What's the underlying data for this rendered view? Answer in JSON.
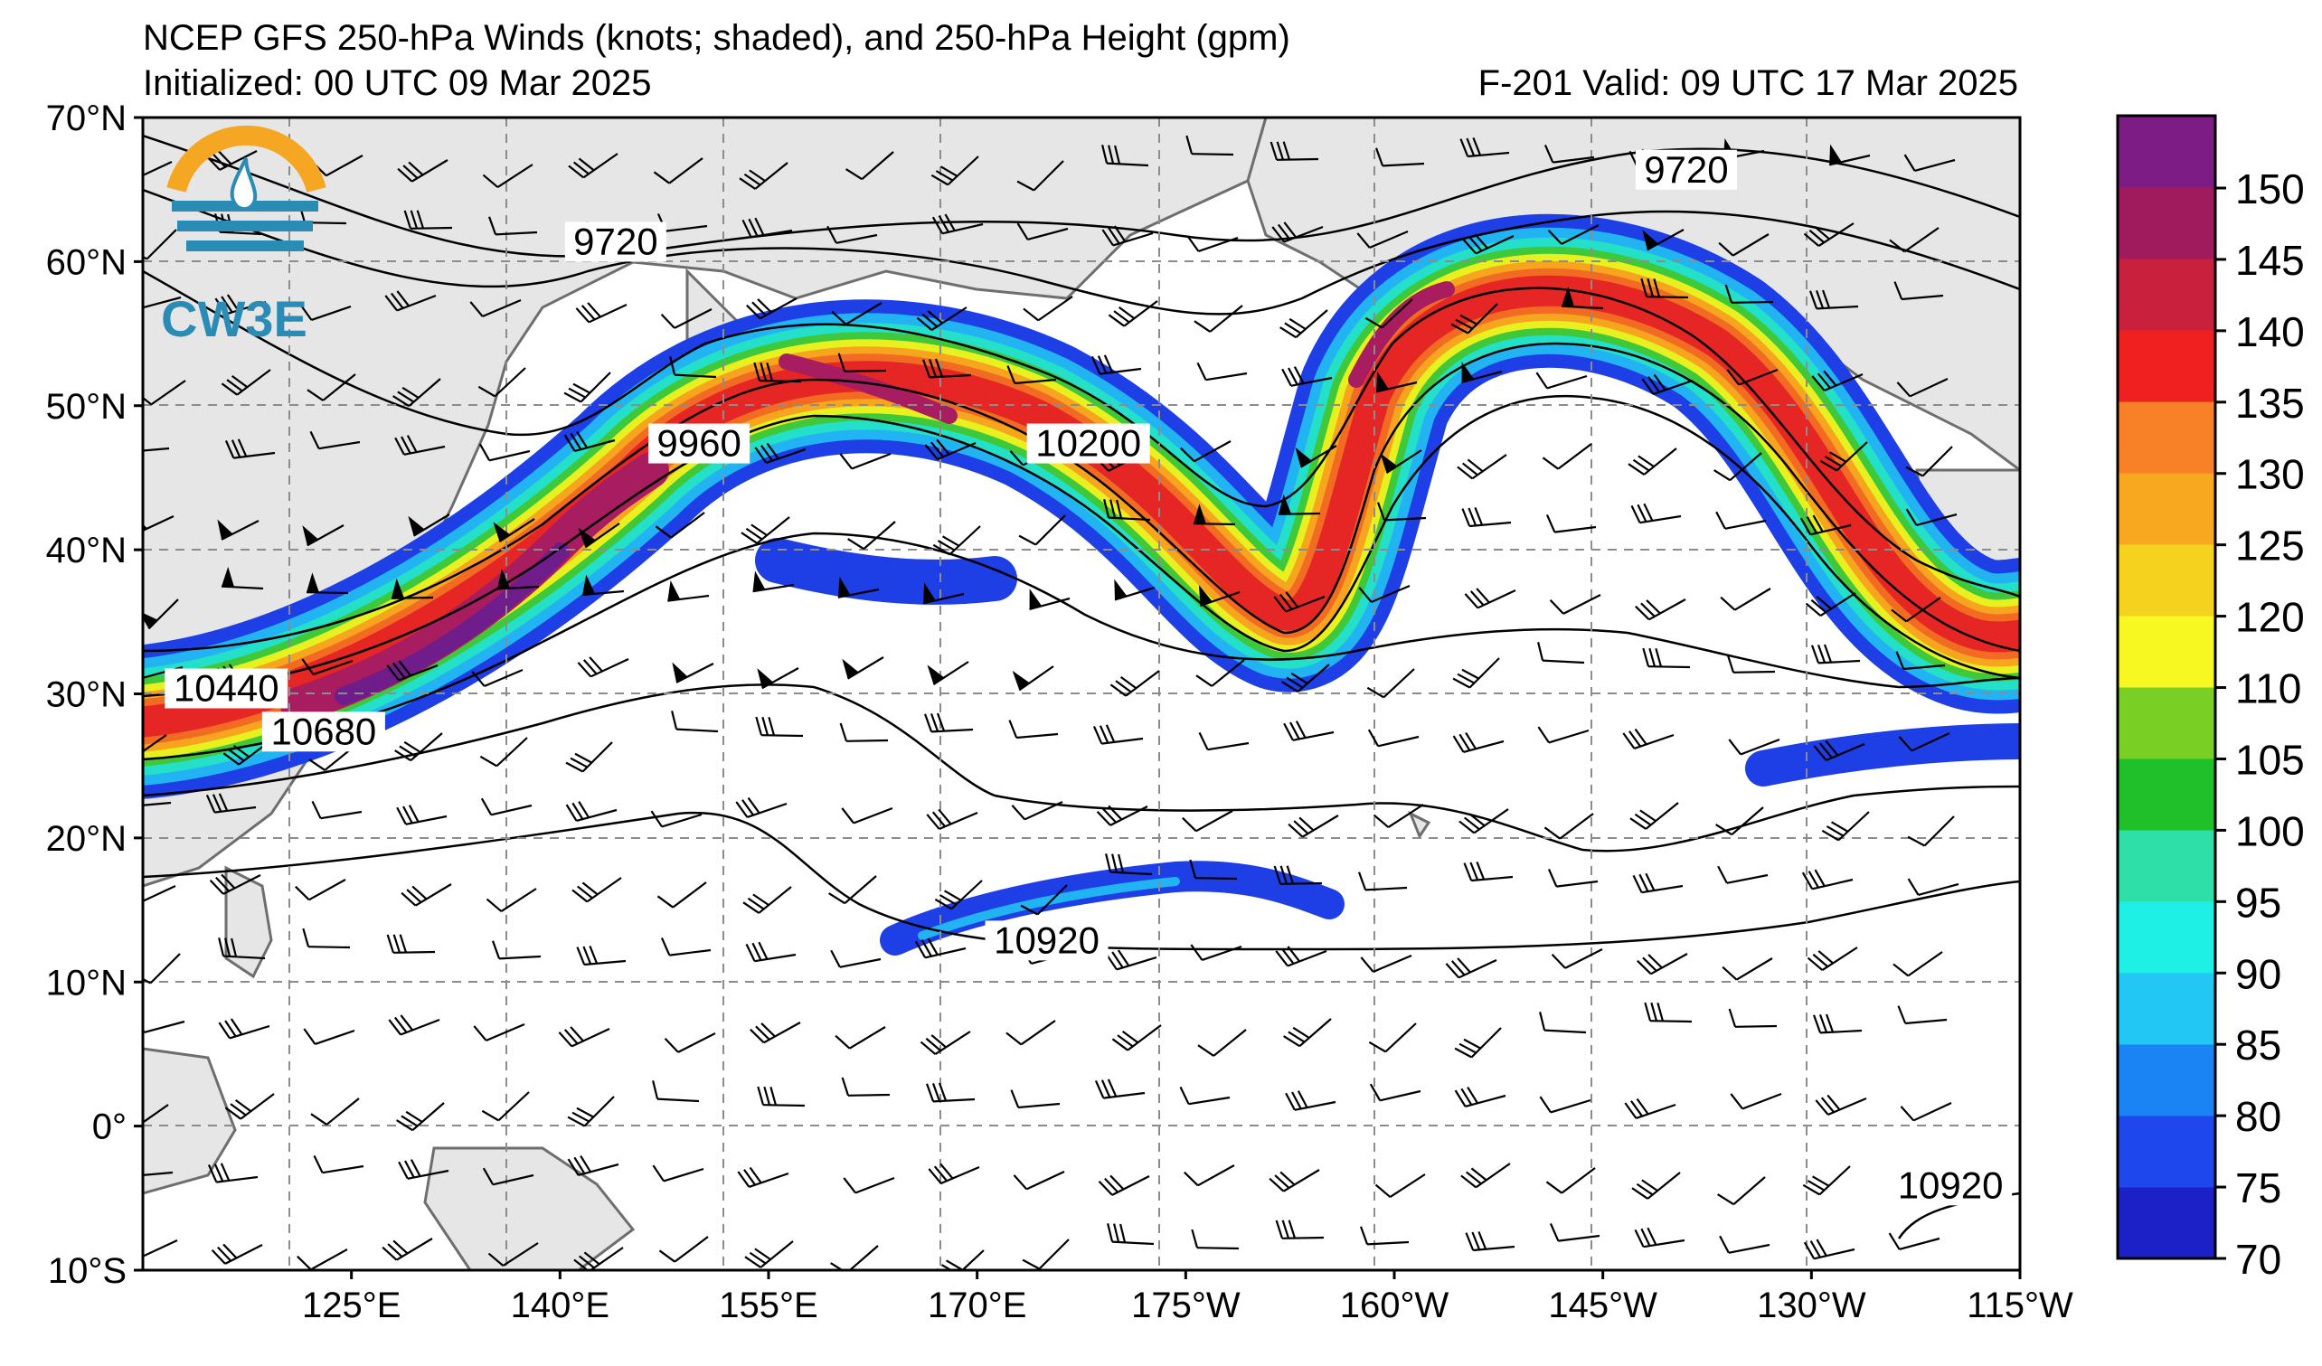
{
  "header": {
    "title": "NCEP GFS 250-hPa Winds (knots; shaded), and 250-hPa Height (gpm)",
    "initialized": "Initialized: 00 UTC 09 Mar 2025",
    "valid": "F-201  Valid: 09 UTC 17 Mar 2025"
  },
  "logo": {
    "text": "CW3E",
    "colors": {
      "orange": "#f5a623",
      "blue": "#2a8bb5"
    }
  },
  "map": {
    "projection": "cylindrical",
    "lon_range_east": [
      110,
      245
    ],
    "lat_range": [
      -10,
      70
    ],
    "land_color": "#e6e6e6",
    "coast_color": "#6e6e6e",
    "grid": "dashed grey"
  },
  "axes": {
    "lat_labels": [
      "70°N",
      "60°N",
      "50°N",
      "40°N",
      "30°N",
      "20°N",
      "10°N",
      "0°",
      "10°S"
    ],
    "lon_labels": [
      "125°E",
      "140°E",
      "155°E",
      "170°E",
      "175°W",
      "160°W",
      "145°W",
      "130°W",
      "115°W"
    ]
  },
  "contour_labels": [
    {
      "text": "9720",
      "lon": 144,
      "lat": 61
    },
    {
      "text": "9720",
      "lon": 221,
      "lat": 66
    },
    {
      "text": "9960",
      "lon": 150,
      "lat": 47
    },
    {
      "text": "10200",
      "lon": 178,
      "lat": 47
    },
    {
      "text": "10440",
      "lon": 116,
      "lat": 30
    },
    {
      "text": "10680",
      "lon": 123,
      "lat": 27
    },
    {
      "text": "10920",
      "lon": 175,
      "lat": 12.5
    },
    {
      "text": "10920",
      "lon": 240,
      "lat": -4.5
    }
  ],
  "colorbar": {
    "label_values": [
      "150",
      "145",
      "140",
      "135",
      "130",
      "125",
      "120",
      "110",
      "105",
      "100",
      "95",
      "90",
      "85",
      "80",
      "75",
      "70"
    ],
    "bands": [
      "#1b21c6",
      "#1e48ee",
      "#1b84f4",
      "#22c7f3",
      "#1ff0e6",
      "#2ee0a7",
      "#1fc02a",
      "#79cf24",
      "#f7f722",
      "#f5d21e",
      "#f8a81e",
      "#f88026",
      "#f02020",
      "#c8203d",
      "#a01a5e",
      "#7e1c86"
    ]
  },
  "jet_colors": {
    "outer": "#1e3fe6",
    "c80": "#22b4f2",
    "c90": "#24e0c8",
    "c100": "#3ec83a",
    "c105": "#e8f020",
    "c120": "#f7a51f",
    "c130": "#f26b22",
    "c135": "#e52624",
    "c140": "#a81c60",
    "c150": "#701d8c"
  }
}
